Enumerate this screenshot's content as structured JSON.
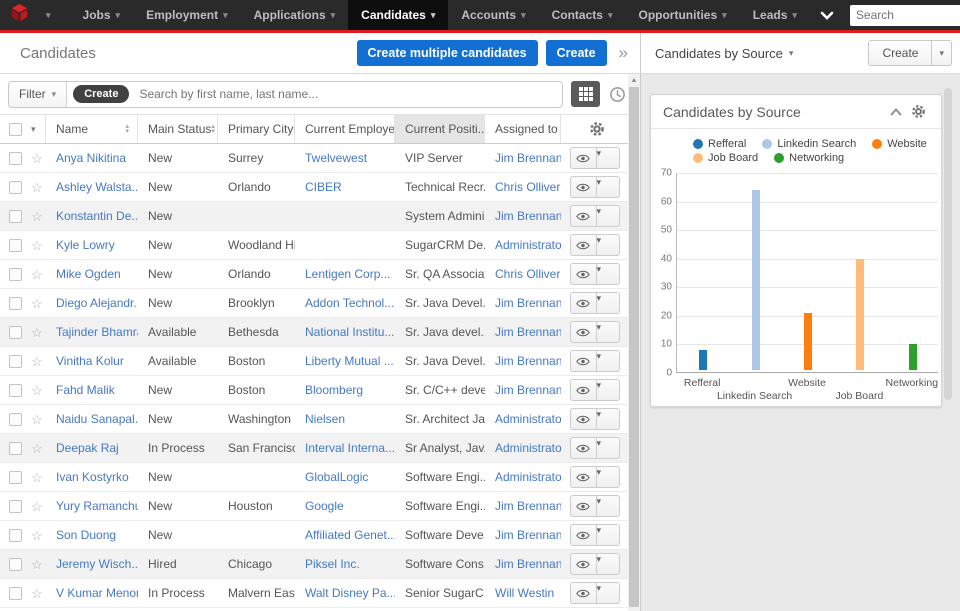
{
  "nav": {
    "items": [
      {
        "label": "Jobs"
      },
      {
        "label": "Employment"
      },
      {
        "label": "Applications"
      },
      {
        "label": "Candidates"
      },
      {
        "label": "Accounts"
      },
      {
        "label": "Contacts"
      },
      {
        "label": "Opportunities"
      },
      {
        "label": "Leads"
      }
    ],
    "active_item": "Candidates",
    "search_placeholder": "Search",
    "notification_count": "0",
    "accent_red": "#dd1b21"
  },
  "header": {
    "title": "Candidates",
    "create_multiple_label": "Create multiple candidates",
    "create_label": "Create",
    "more_glyph": "»"
  },
  "right_header": {
    "title": "Candidates by Source",
    "create_label": "Create"
  },
  "filter_bar": {
    "filter_label": "Filter",
    "create_label": "Create",
    "search_placeholder": "Search by first name, last name..."
  },
  "table": {
    "columns": [
      {
        "label": "Name",
        "sort": "both"
      },
      {
        "label": "Main Status",
        "sort": "both"
      },
      {
        "label": "Primary City",
        "sort": "both"
      },
      {
        "label": "Current Employer",
        "sort": "none"
      },
      {
        "label": "Current Positi...",
        "sort": "desc",
        "sorted": true
      },
      {
        "label": "Assigned to",
        "sort": "none"
      }
    ],
    "rows": [
      {
        "name": "Anya Nikitina",
        "status": "New",
        "city": "Surrey",
        "employer": "Twelvewest",
        "position": "VIP Server",
        "assigned": "Jim Brennan"
      },
      {
        "name": "Ashley Walsta...",
        "status": "New",
        "city": "Orlando",
        "employer": "CIBER",
        "position": "Technical Recr...",
        "assigned": "Chris Olliver"
      },
      {
        "name": "Konstantin De...",
        "status": "New",
        "city": "",
        "employer": "",
        "position": "System Admini...",
        "assigned": "Jim Brennan"
      },
      {
        "name": "Kyle Lowry",
        "status": "New",
        "city": "Woodland Hills",
        "employer": "",
        "position": "SugarCRM De...",
        "assigned": "Administrator"
      },
      {
        "name": "Mike Ogden",
        "status": "New",
        "city": "Orlando",
        "employer": "Lentigen Corp...",
        "position": "Sr. QA Associate",
        "assigned": "Chris Olliver"
      },
      {
        "name": "Diego Alejandr...",
        "status": "New",
        "city": "Brooklyn",
        "employer": "Addon Technol...",
        "position": "Sr. Java Devel...",
        "assigned": "Jim Brennan"
      },
      {
        "name": "Tajinder Bhamra",
        "status": "Available",
        "city": "Bethesda",
        "employer": "National Institu...",
        "position": "Sr. Java devel...",
        "assigned": "Jim Brennan"
      },
      {
        "name": "Vinitha Kolur",
        "status": "Available",
        "city": "Boston",
        "employer": "Liberty Mutual ...",
        "position": "Sr. Java Devel...",
        "assigned": "Jim Brennan"
      },
      {
        "name": "Fahd Malik",
        "status": "New",
        "city": "Boston",
        "employer": "Bloomberg",
        "position": "Sr. C/C++ deve...",
        "assigned": "Jim Brennan"
      },
      {
        "name": "Naidu Sanapal...",
        "status": "New",
        "city": "Washington",
        "employer": "Nielsen",
        "position": "Sr. Architect Ja...",
        "assigned": "Administrator"
      },
      {
        "name": "Deepak Raj",
        "status": "In Process",
        "city": "San Francisco",
        "employer": "Interval Interna...",
        "position": "Sr Analyst, Jav...",
        "assigned": "Administrator"
      },
      {
        "name": "Ivan Kostyrko",
        "status": "New",
        "city": "",
        "employer": "GlobalLogic",
        "position": "Software Engi...",
        "assigned": "Administrator"
      },
      {
        "name": "Yury Ramanchuk",
        "status": "New",
        "city": "Houston",
        "employer": "Google",
        "position": "Software Engi...",
        "assigned": "Jim Brennan"
      },
      {
        "name": "Son Duong",
        "status": "New",
        "city": "",
        "employer": "Affiliated Genet...",
        "position": "Software Deve...",
        "assigned": "Jim Brennan"
      },
      {
        "name": "Jeremy Wisch...",
        "status": "Hired",
        "city": "Chicago",
        "employer": "Piksel Inc.",
        "position": "Software Cons...",
        "assigned": "Jim Brennan"
      },
      {
        "name": "V Kumar Menon",
        "status": "In Process",
        "city": "Malvern East",
        "employer": "Walt Disney Pa...",
        "position": "Senior SugarC...",
        "assigned": "Will Westin"
      }
    ]
  },
  "dashlet": {
    "title": "Candidates by Source"
  },
  "chart_data": {
    "type": "bar",
    "categories": [
      "Refferal",
      "Linkedin Search",
      "Website",
      "Job Board",
      "Networking"
    ],
    "values": [
      7,
      63,
      20,
      39,
      9
    ],
    "colors": [
      "#1f77b4",
      "#aec7e8",
      "#ff7f0e",
      "#ffbb78",
      "#2ca02c"
    ],
    "title": "Candidates by Source",
    "xlabel": "",
    "ylabel": "",
    "ylim": [
      0,
      70
    ],
    "yticks": [
      0,
      10,
      20,
      30,
      40,
      50,
      60,
      70
    ],
    "legend": [
      "Refferal",
      "Linkedin Search",
      "Website",
      "Job Board",
      "Networking"
    ],
    "legend_position": "top",
    "grid": true
  },
  "icons": {
    "star": "☆",
    "caret_down": "▾",
    "sort_asc": "▴",
    "sort_desc": "▾",
    "plus": "+",
    "scroll_up": "▲"
  }
}
